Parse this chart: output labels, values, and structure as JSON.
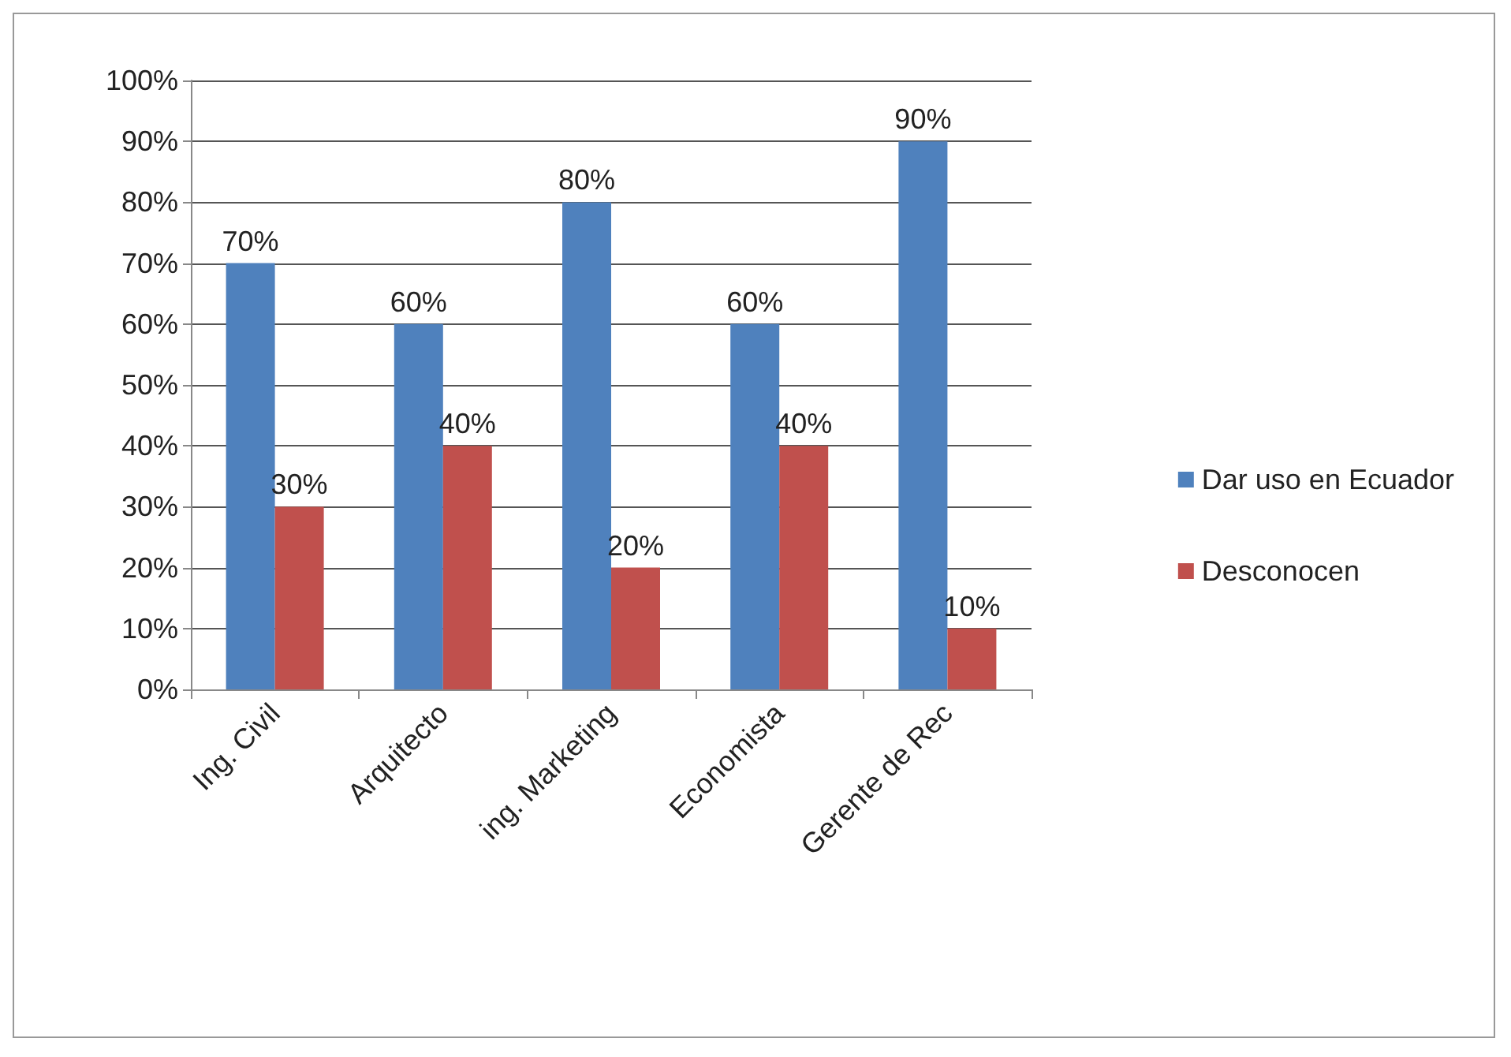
{
  "chart_data": {
    "type": "bar",
    "categories": [
      "Ing. Civil",
      "Arquitecto",
      "ing. Marketing",
      "Economista",
      "Gerente de Rec"
    ],
    "series": [
      {
        "name": "Dar uso en Ecuador",
        "color": "#4f81bd",
        "values": [
          70,
          60,
          80,
          60,
          90
        ],
        "value_labels": [
          "70%",
          "60%",
          "80%",
          "60%",
          "90%"
        ]
      },
      {
        "name": "Desconocen",
        "color": "#c0504d",
        "values": [
          30,
          40,
          20,
          40,
          10
        ],
        "value_labels": [
          "30%",
          "40%",
          "20%",
          "40%",
          "10%"
        ]
      }
    ],
    "ylim": [
      0,
      100
    ],
    "yticks": [
      {
        "value": 0,
        "label": "0%"
      },
      {
        "value": 10,
        "label": "10%"
      },
      {
        "value": 20,
        "label": "20%"
      },
      {
        "value": 30,
        "label": "30%"
      },
      {
        "value": 40,
        "label": "40%"
      },
      {
        "value": 50,
        "label": "50%"
      },
      {
        "value": 60,
        "label": "60%"
      },
      {
        "value": 70,
        "label": "70%"
      },
      {
        "value": 80,
        "label": "80%"
      },
      {
        "value": 90,
        "label": "90%"
      },
      {
        "value": 100,
        "label": "100%"
      }
    ],
    "grid": "y",
    "legend": "right"
  }
}
